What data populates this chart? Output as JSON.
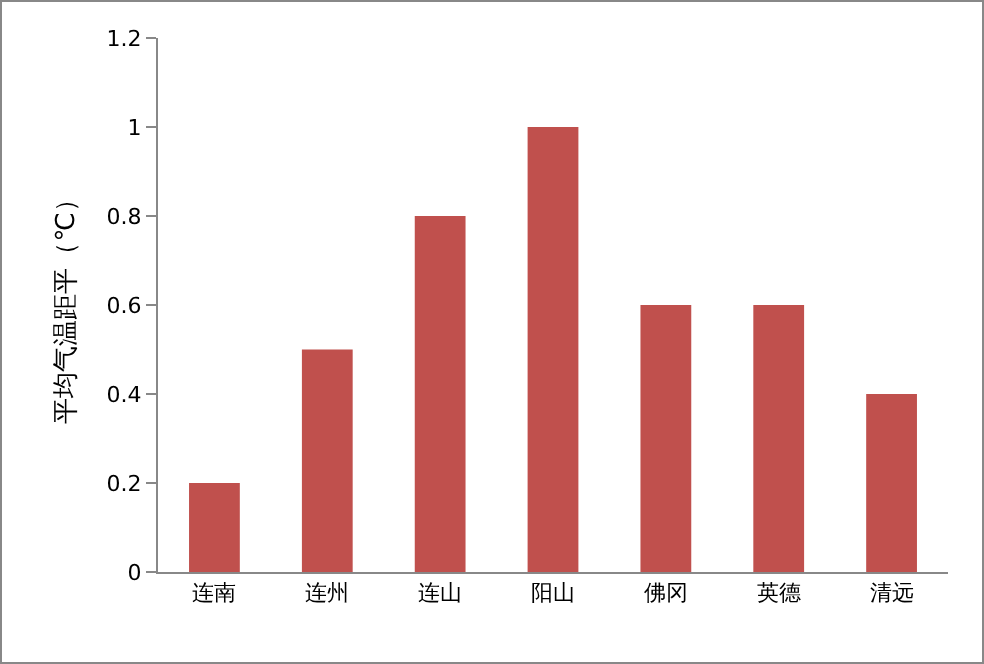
{
  "chart_data": {
    "type": "bar",
    "ylabel": "平均气温距平（℃）",
    "categories": [
      "连南",
      "连州",
      "连山",
      "阳山",
      "佛冈",
      "英德",
      "清远"
    ],
    "values": [
      0.2,
      0.5,
      0.8,
      1,
      0.6,
      0.6,
      0.4
    ],
    "color": "#c0504d",
    "ylim": [
      0,
      1.2
    ],
    "yticks": [
      0,
      0.2,
      0.4,
      0.6,
      0.8,
      1,
      1.2
    ],
    "grid": false
  }
}
